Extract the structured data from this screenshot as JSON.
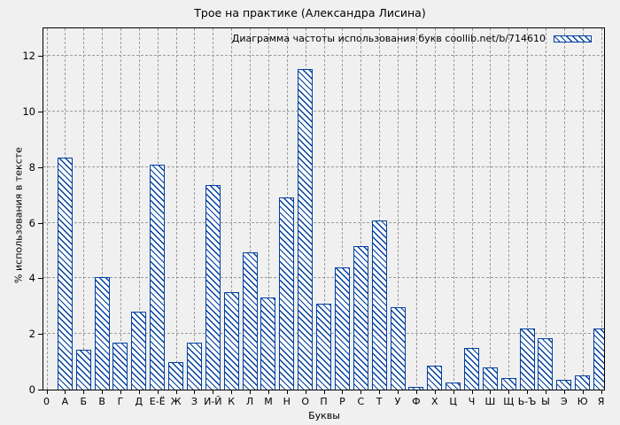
{
  "title": "Трое на практике (Александра Лисина)",
  "legend": {
    "label": "Диаграмма частоты использования букв coollib.net/b/714610"
  },
  "axes": {
    "y_label": "% использования в тексте",
    "x_label": "Буквы",
    "x_origin_label": "0",
    "y_ticks": [
      0,
      2,
      4,
      6,
      8,
      10,
      12
    ],
    "y_max": 13
  },
  "colors": {
    "bar_accent": "#0040a0",
    "background": "#f0f0f0",
    "grid": "#9c9c9c",
    "axis": "#000000"
  },
  "chart_data": {
    "type": "bar",
    "title": "Трое на практике (Александра Лисина)",
    "xlabel": "Буквы",
    "ylabel": "% использования в тексте",
    "ylim": [
      0,
      13
    ],
    "grid": true,
    "legend_entries": [
      "Диаграмма частоты использования букв coollib.net/b/714610"
    ],
    "legend_position": "top-right-inside",
    "bar_style": "blue diagonal hatch on white, blue outline",
    "categories": [
      "А",
      "Б",
      "В",
      "Г",
      "Д",
      "Е-Ё",
      "Ж",
      "З",
      "И-Й",
      "К",
      "Л",
      "М",
      "Н",
      "О",
      "П",
      "Р",
      "С",
      "Т",
      "У",
      "Ф",
      "Х",
      "Ц",
      "Ч",
      "Ш",
      "Щ",
      "Ь-Ъ",
      "Ы",
      "Э",
      "Ю",
      "Я"
    ],
    "values": [
      8.35,
      1.45,
      4.05,
      1.7,
      2.8,
      8.1,
      1.0,
      1.7,
      7.35,
      3.5,
      4.95,
      3.3,
      6.9,
      11.55,
      3.1,
      4.4,
      5.15,
      6.1,
      2.95,
      0.1,
      0.85,
      0.25,
      1.5,
      0.8,
      0.4,
      2.2,
      1.85,
      0.35,
      0.5,
      2.2
    ]
  }
}
